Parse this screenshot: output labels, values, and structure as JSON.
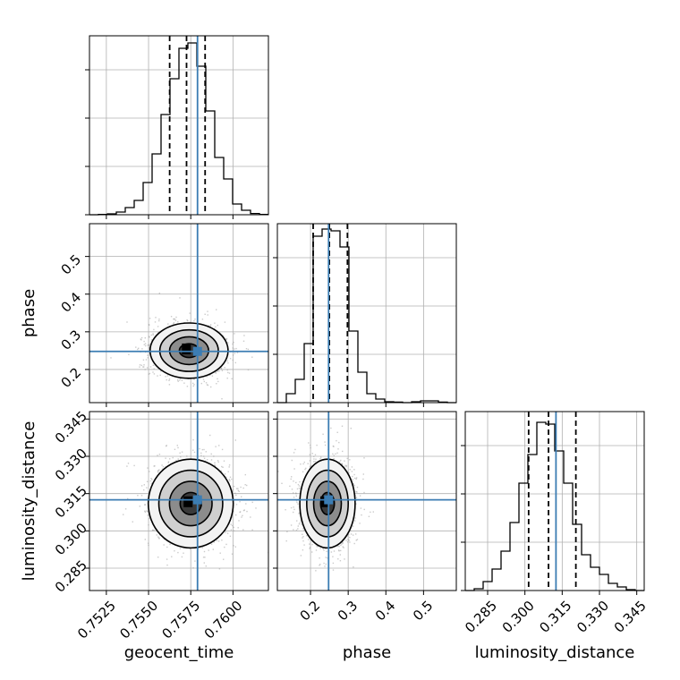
{
  "chart_data": {
    "type": "corner",
    "parameters": [
      "geocent_time",
      "phase",
      "luminosity_distance"
    ],
    "axis_labels": {
      "geocent_time": "geocent_time",
      "phase": "phase",
      "luminosity_distance": "luminosity_distance"
    },
    "ranges": {
      "geocent_time": [
        0.7515,
        0.7621
      ],
      "phase": [
        0.112,
        0.587
      ],
      "luminosity_distance": [
        0.276,
        0.348
      ]
    },
    "ticks": {
      "geocent_time": [
        "0.7525",
        "0.7550",
        "0.7575",
        "0.7600"
      ],
      "phase": [
        "0.2",
        "0.3",
        "0.4",
        "0.5"
      ],
      "luminosity_distance": [
        "0.285",
        "0.300",
        "0.315",
        "0.330",
        "0.345"
      ]
    },
    "truths": {
      "geocent_time": 0.7579,
      "phase": 0.248,
      "luminosity_distance": 0.3125
    },
    "quantiles": {
      "geocent_time": [
        0.75625,
        0.75725,
        0.75835
      ],
      "phase": [
        0.207,
        0.25,
        0.298
      ],
      "luminosity_distance": [
        0.3015,
        0.3095,
        0.3205
      ]
    },
    "histograms": {
      "geocent_time": {
        "bin_edges": [
          0.7515,
          0.75203,
          0.75256,
          0.75309,
          0.75362,
          0.75415,
          0.75468,
          0.75521,
          0.75574,
          0.75627,
          0.7568,
          0.75733,
          0.75786,
          0.75839,
          0.75892,
          0.75945,
          0.75998,
          0.76051,
          0.76104,
          0.76157,
          0.7621
        ],
        "counts": [
          0.0,
          0.002,
          0.005,
          0.015,
          0.04,
          0.08,
          0.18,
          0.34,
          0.56,
          0.76,
          0.93,
          0.96,
          0.83,
          0.58,
          0.32,
          0.2,
          0.06,
          0.025,
          0.007,
          0.002
        ]
      },
      "phase": {
        "bin_edges": [
          0.112,
          0.13575,
          0.1595,
          0.18325,
          0.207,
          0.23075,
          0.2545,
          0.27825,
          0.302,
          0.32575,
          0.3495,
          0.37325,
          0.397,
          0.42075,
          0.4445,
          0.46825,
          0.492,
          0.51575,
          0.5395,
          0.56325,
          0.587
        ],
        "counts": [
          0.0,
          0.05,
          0.13,
          0.33,
          0.93,
          0.97,
          0.96,
          0.87,
          0.4,
          0.17,
          0.05,
          0.02,
          0.005,
          0.003,
          0.0,
          0.005,
          0.01,
          0.01,
          0.003,
          0.0
        ]
      },
      "luminosity_distance": {
        "bin_edges": [
          0.276,
          0.2796,
          0.2832,
          0.2868,
          0.2904,
          0.294,
          0.2976,
          0.3012,
          0.3048,
          0.3084,
          0.312,
          0.3156,
          0.3192,
          0.3228,
          0.3264,
          0.33,
          0.3336,
          0.3372,
          0.3408,
          0.3444,
          0.348
        ],
        "counts": [
          0.0,
          0.01,
          0.05,
          0.12,
          0.22,
          0.38,
          0.6,
          0.76,
          0.94,
          0.93,
          0.78,
          0.6,
          0.37,
          0.2,
          0.13,
          0.09,
          0.04,
          0.02,
          0.005,
          0.0
        ]
      }
    },
    "pairs": [
      {
        "x": "geocent_time",
        "y": "phase",
        "center": [
          0.7574,
          0.25
        ],
        "sigma": [
          0.0011,
          0.035
        ]
      },
      {
        "x": "geocent_time",
        "y": "luminosity_distance",
        "center": [
          0.7575,
          0.311
        ],
        "sigma": [
          0.0012,
          0.0085
        ]
      },
      {
        "x": "phase",
        "y": "luminosity_distance",
        "center": [
          0.245,
          0.311
        ],
        "sigma": [
          0.035,
          0.0085
        ]
      }
    ],
    "grid": true,
    "colors": {
      "truth": "#3c7db3",
      "histogram": "#000000",
      "quantile": "#000000",
      "points": "#9e9e9e"
    }
  }
}
